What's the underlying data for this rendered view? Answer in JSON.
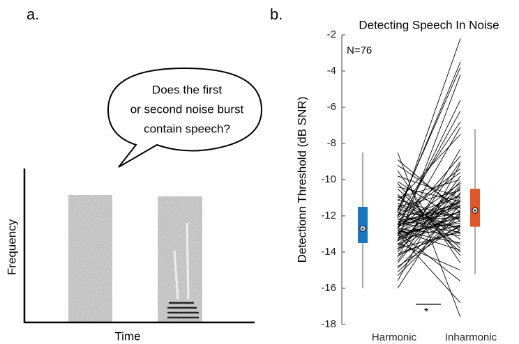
{
  "panel_a": {
    "label": "a.",
    "bubble": [
      "Does the first",
      "or second noise burst",
      "contain speech?"
    ],
    "y_label": "Frequency",
    "x_label": "Time"
  },
  "chart_data": {
    "type": "paired_box",
    "label": "b.",
    "title": "Detecting Speech In Noise",
    "ylabel": "Detectionn Threshold (dB SNR)",
    "annotation": "N=76",
    "significance": "*",
    "categories": [
      "Harmonic",
      "Inharmonic"
    ],
    "colors": [
      "#1a78c2",
      "#e0572a"
    ],
    "boxes": [
      {
        "whislo": -16,
        "q1": -13.5,
        "med": -12.7,
        "q3": -11.5,
        "whishi": -8.5
      },
      {
        "whislo": -15.2,
        "q1": -12.6,
        "med": -11.7,
        "q3": -10.5,
        "whishi": -7.2
      }
    ],
    "subjects": {
      "harmonic": [
        -12.5,
        -13.2,
        -11.8,
        -14.1,
        -12.9,
        -10.2,
        -13.6,
        -12.1,
        -15.1,
        -11.4,
        -13.0,
        -12.7,
        -9.8,
        -14.5,
        -12.3,
        -13.4,
        -11.9,
        -12.8,
        -16.0,
        -8.5,
        -13.1,
        -12.6,
        -11.2,
        -14.0,
        -12.4,
        -13.8,
        -10.8,
        -12.0,
        -13.3,
        -12.9,
        -15.6,
        -11.6,
        -12.2,
        -13.5,
        -9.2,
        -12.7,
        -14.3,
        -11.1,
        -13.0,
        -12.5,
        -10.5,
        -13.7,
        -12.1,
        -14.8,
        -11.7,
        -12.8,
        -13.2,
        -9.5,
        -12.4,
        -13.9,
        -11.3,
        -12.6,
        -15.3,
        -10.9,
        -13.1,
        -12.3,
        -14.2,
        -11.5,
        -12.9,
        -13.6,
        -10.1,
        -12.0,
        -13.4,
        -11.8,
        -14.6,
        -12.2,
        -13.0,
        -8.9,
        -12.7,
        -13.3,
        -11.0,
        -14.9,
        -12.5,
        -13.8,
        -10.4,
        -12.8
      ],
      "inharmonic": [
        -11.2,
        -12.0,
        -3.5,
        -12.8,
        -11.5,
        -14.2,
        -10.1,
        -2.2,
        -11.8,
        -13.0,
        -12.3,
        -5.6,
        -11.0,
        -9.8,
        -12.6,
        -4.2,
        -11.9,
        -13.5,
        -10.7,
        -17.6,
        -12.1,
        -11.4,
        -7.5,
        -10.3,
        -12.9,
        -11.7,
        -14.0,
        -6.8,
        -11.2,
        -12.4,
        -9.1,
        -12.7,
        -10.9,
        -15.0,
        -11.6,
        -13.1,
        -8.3,
        -12.2,
        -10.5,
        -11.8,
        -13.8,
        -11.1,
        -9.6,
        -12.5,
        -3.8,
        -10.8,
        -12.0,
        -14.6,
        -11.3,
        -9.0,
        -12.8,
        -10.2,
        -11.9,
        -13.3,
        -7.1,
        -11.5,
        -12.6,
        -10.6,
        -15.6,
        -11.7,
        -12.3,
        -9.4,
        -11.0,
        -13.6,
        -10.4,
        -12.1,
        -16.8,
        -11.8,
        -8.7,
        -12.5,
        -10.0,
        -11.4,
        -6.2,
        -12.9,
        -11.2,
        -13.9
      ]
    },
    "ylim": [
      -18,
      -2
    ],
    "yticks": [
      -18,
      -16,
      -14,
      -12,
      -10,
      -8,
      -6,
      -4,
      -2
    ]
  }
}
